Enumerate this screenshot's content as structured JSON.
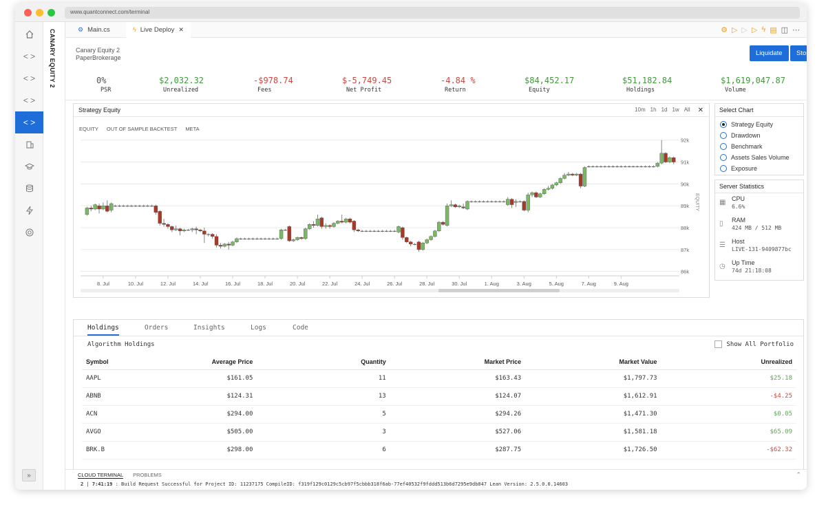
{
  "browser": {
    "url": "www.quantconnect.com/terminal"
  },
  "project": {
    "vertical_title": "CANARY EQUITY 2",
    "name": "Canary Equity 2",
    "brokerage": "PaperBrokerage"
  },
  "tabs": [
    {
      "label": "Main.cs",
      "icon": "csharp-file-icon"
    },
    {
      "label": "Live Deploy",
      "icon": "lightning-icon",
      "close": "✕"
    }
  ],
  "actions": {
    "liquidate": "Liquidate",
    "stop": "Stop"
  },
  "stats": [
    {
      "value": "0%",
      "label": "PSR",
      "color": "#555555"
    },
    {
      "value": "$2,032.32",
      "label": "Unrealized",
      "color": "#3f9a3a"
    },
    {
      "value": "-$978.74",
      "label": "Fees",
      "color": "#d0463e"
    },
    {
      "value": "$-5,749.45",
      "label": "Net Profit",
      "color": "#d0463e"
    },
    {
      "value": "-4.84 %",
      "label": "Return",
      "color": "#d0463e"
    },
    {
      "value": "$84,452.17",
      "label": "Equity",
      "color": "#3f9a3a"
    },
    {
      "value": "$51,182.84",
      "label": "Holdings",
      "color": "#3f9a3a"
    },
    {
      "value": "$1,619,047.87",
      "label": "Volume",
      "color": "#3f9a3a"
    }
  ],
  "chart_panel": {
    "title": "Strategy Equity",
    "ranges": [
      "10m",
      "1h",
      "1d",
      "1w",
      "All"
    ],
    "close": "✕",
    "series_tabs": [
      "EQUITY",
      "OUT OF SAMPLE BACKTEST",
      "META"
    ]
  },
  "chart_data": {
    "type": "candlestick",
    "ylabel": "EQUITY",
    "ylim": [
      85.8,
      92.4
    ],
    "yticks": [
      "86k",
      "87k",
      "88k",
      "89k",
      "90k",
      "91k",
      "92k"
    ],
    "xticks": [
      "8. Jul",
      "10. Jul",
      "12. Jul",
      "14. Jul",
      "16. Jul",
      "18. Jul",
      "20. Jul",
      "22. Jul",
      "24. Jul",
      "26. Jul",
      "28. Jul",
      "30. Jul",
      "1. Aug",
      "3. Aug",
      "5. Aug",
      "7. Aug",
      "9. Aug"
    ],
    "candles": [
      [
        7.0,
        88.6,
        88.9,
        88.55,
        88.95
      ],
      [
        7.25,
        88.9,
        88.85,
        88.75,
        89.0
      ],
      [
        7.5,
        88.85,
        89.05,
        88.8,
        89.1
      ],
      [
        7.75,
        89.0,
        88.85,
        88.65,
        89.1
      ],
      [
        8.0,
        88.85,
        89.0,
        88.8,
        89.15
      ],
      [
        8.25,
        89.0,
        88.75,
        88.7,
        89.25
      ],
      [
        8.5,
        88.8,
        89.1,
        88.7,
        89.15
      ],
      [
        8.75,
        89.0,
        89.0,
        88.95,
        89.05
      ],
      [
        9.0,
        89.0,
        89.0,
        88.95,
        89.05
      ],
      [
        9.25,
        89.0,
        89.0,
        88.95,
        89.05
      ],
      [
        9.5,
        89.0,
        89.0,
        88.95,
        89.05
      ],
      [
        9.75,
        89.0,
        89.0,
        88.95,
        89.05
      ],
      [
        10.0,
        89.0,
        89.0,
        88.95,
        89.05
      ],
      [
        10.25,
        89.0,
        89.0,
        88.95,
        89.05
      ],
      [
        10.5,
        89.0,
        89.0,
        88.95,
        89.05
      ],
      [
        10.75,
        89.0,
        89.0,
        88.95,
        89.05
      ],
      [
        11.0,
        89.0,
        89.0,
        88.95,
        89.05
      ],
      [
        11.25,
        89.0,
        88.7,
        88.6,
        89.05
      ],
      [
        11.5,
        88.75,
        88.2,
        88.1,
        88.8
      ],
      [
        11.75,
        88.2,
        88.15,
        88.05,
        88.4
      ],
      [
        12.0,
        88.15,
        88.05,
        87.95,
        88.2
      ],
      [
        12.25,
        88.05,
        87.9,
        87.8,
        88.1
      ],
      [
        12.5,
        87.9,
        87.95,
        87.85,
        88.1
      ],
      [
        12.75,
        87.95,
        87.85,
        87.65,
        88.0
      ],
      [
        13.0,
        87.85,
        87.9,
        87.8,
        87.95
      ],
      [
        13.25,
        87.9,
        87.9,
        87.85,
        87.95
      ],
      [
        13.5,
        87.9,
        87.95,
        87.8,
        88.0
      ],
      [
        13.75,
        87.95,
        87.9,
        87.7,
        88.05
      ],
      [
        14.0,
        87.9,
        87.85,
        87.8,
        87.95
      ],
      [
        14.25,
        87.85,
        87.7,
        87.3,
        88.0
      ],
      [
        14.5,
        87.7,
        87.7,
        87.6,
        87.75
      ],
      [
        14.75,
        87.7,
        87.6,
        87.5,
        87.75
      ],
      [
        15.0,
        87.6,
        87.2,
        87.1,
        87.7
      ],
      [
        15.25,
        87.2,
        87.15,
        87.05,
        87.3
      ],
      [
        15.5,
        87.15,
        87.25,
        87.1,
        87.3
      ],
      [
        15.75,
        87.25,
        87.2,
        87.0,
        87.35
      ],
      [
        16.0,
        87.2,
        87.35,
        87.15,
        87.4
      ],
      [
        16.25,
        87.35,
        87.5,
        87.3,
        87.55
      ],
      [
        16.5,
        87.5,
        87.5,
        87.45,
        87.55
      ],
      [
        16.75,
        87.5,
        87.5,
        87.45,
        87.55
      ],
      [
        17.0,
        87.5,
        87.5,
        87.45,
        87.55
      ],
      [
        17.25,
        87.5,
        87.5,
        87.45,
        87.55
      ],
      [
        17.5,
        87.5,
        87.5,
        87.45,
        87.55
      ],
      [
        17.75,
        87.5,
        87.5,
        87.45,
        87.55
      ],
      [
        18.0,
        87.5,
        87.5,
        87.45,
        87.55
      ],
      [
        18.25,
        87.5,
        87.5,
        87.45,
        87.55
      ],
      [
        18.5,
        87.5,
        87.5,
        87.45,
        87.55
      ],
      [
        18.75,
        87.5,
        87.5,
        87.45,
        87.55
      ],
      [
        19.0,
        87.5,
        87.9,
        87.45,
        87.95
      ],
      [
        19.25,
        87.9,
        87.9,
        87.85,
        87.95
      ],
      [
        19.5,
        88.05,
        87.4,
        87.35,
        88.1
      ],
      [
        19.75,
        87.4,
        87.45,
        87.35,
        87.5
      ],
      [
        20.0,
        87.45,
        87.55,
        87.4,
        87.6
      ],
      [
        20.25,
        87.55,
        87.5,
        87.45,
        87.6
      ],
      [
        20.5,
        87.5,
        87.95,
        87.45,
        88.0
      ],
      [
        20.75,
        87.95,
        88.15,
        87.9,
        88.2
      ],
      [
        21.0,
        88.15,
        88.1,
        88.0,
        88.3
      ],
      [
        21.25,
        88.1,
        88.4,
        88.05,
        88.6
      ],
      [
        21.5,
        88.45,
        88.05,
        87.95,
        88.5
      ],
      [
        21.75,
        88.05,
        88.1,
        87.95,
        88.2
      ],
      [
        22.0,
        88.1,
        88.05,
        87.95,
        88.15
      ],
      [
        22.25,
        88.05,
        88.2,
        88.0,
        88.25
      ],
      [
        22.5,
        88.2,
        88.3,
        88.15,
        88.35
      ],
      [
        22.75,
        88.3,
        88.25,
        88.2,
        88.6
      ],
      [
        23.0,
        88.25,
        88.4,
        88.2,
        88.45
      ],
      [
        23.25,
        88.4,
        88.25,
        88.2,
        88.45
      ],
      [
        23.5,
        88.3,
        87.9,
        87.8,
        88.35
      ],
      [
        23.75,
        87.9,
        87.85,
        87.8,
        87.95
      ],
      [
        24.0,
        87.85,
        87.85,
        87.8,
        87.9
      ],
      [
        24.25,
        87.85,
        87.85,
        87.8,
        87.9
      ],
      [
        24.5,
        87.85,
        87.85,
        87.8,
        87.9
      ],
      [
        24.75,
        87.85,
        87.85,
        87.8,
        87.9
      ],
      [
        25.0,
        87.85,
        87.85,
        87.8,
        87.9
      ],
      [
        25.25,
        87.85,
        87.85,
        87.8,
        87.9
      ],
      [
        25.5,
        87.85,
        87.85,
        87.8,
        87.9
      ],
      [
        25.75,
        87.85,
        87.85,
        87.8,
        87.9
      ],
      [
        26.0,
        87.85,
        87.85,
        87.8,
        87.9
      ],
      [
        26.25,
        87.8,
        88.05,
        87.75,
        88.1
      ],
      [
        26.5,
        88.0,
        87.55,
        87.45,
        88.05
      ],
      [
        26.75,
        87.55,
        87.35,
        87.3,
        87.6
      ],
      [
        27.0,
        87.35,
        87.25,
        87.15,
        87.4
      ],
      [
        27.25,
        87.25,
        87.25,
        87.2,
        87.3
      ],
      [
        27.5,
        87.35,
        87.0,
        86.9,
        87.4
      ],
      [
        27.75,
        87.0,
        87.3,
        86.95,
        87.35
      ],
      [
        28.0,
        87.3,
        87.45,
        87.25,
        87.5
      ],
      [
        28.25,
        87.45,
        87.6,
        87.4,
        87.65
      ],
      [
        28.5,
        87.6,
        87.85,
        87.55,
        87.9
      ],
      [
        28.75,
        87.85,
        88.25,
        87.8,
        88.3
      ],
      [
        29.0,
        88.25,
        88.15,
        88.1,
        88.3
      ],
      [
        29.25,
        88.1,
        89.0,
        88.05,
        89.1
      ],
      [
        29.5,
        89.0,
        89.05,
        88.95,
        89.25
      ],
      [
        29.75,
        89.05,
        88.95,
        88.9,
        89.1
      ],
      [
        30.0,
        88.95,
        89.0,
        88.9,
        89.05
      ],
      [
        30.25,
        88.95,
        88.9,
        88.85,
        89.1
      ],
      [
        30.5,
        88.85,
        89.2,
        88.8,
        89.25
      ],
      [
        30.75,
        89.2,
        89.2,
        89.15,
        89.25
      ],
      [
        31.0,
        89.2,
        89.2,
        89.15,
        89.25
      ],
      [
        31.25,
        89.2,
        89.2,
        89.15,
        89.25
      ],
      [
        31.5,
        89.2,
        89.2,
        89.15,
        89.25
      ],
      [
        31.75,
        89.2,
        89.2,
        89.15,
        89.25
      ],
      [
        32.0,
        89.2,
        89.2,
        89.15,
        89.25
      ],
      [
        32.25,
        89.2,
        89.2,
        89.15,
        89.25
      ],
      [
        32.5,
        89.2,
        89.2,
        89.15,
        89.25
      ],
      [
        32.75,
        89.2,
        89.2,
        89.15,
        89.25
      ],
      [
        33.0,
        89.05,
        89.3,
        89.0,
        89.4
      ],
      [
        33.25,
        89.3,
        89.05,
        88.9,
        89.35
      ],
      [
        33.5,
        89.15,
        89.2,
        88.95,
        89.3
      ],
      [
        33.75,
        89.2,
        89.2,
        89.15,
        89.25
      ],
      [
        34.0,
        89.2,
        88.8,
        88.75,
        89.25
      ],
      [
        34.25,
        88.8,
        89.5,
        88.7,
        89.6
      ],
      [
        34.5,
        89.5,
        89.6,
        89.4,
        89.65
      ],
      [
        34.75,
        89.6,
        89.4,
        89.35,
        89.65
      ],
      [
        35.0,
        89.4,
        89.55,
        89.35,
        89.6
      ],
      [
        35.25,
        89.55,
        89.75,
        89.5,
        89.8
      ],
      [
        35.5,
        89.75,
        89.8,
        89.7,
        89.9
      ],
      [
        35.75,
        89.8,
        89.95,
        89.75,
        90.0
      ],
      [
        36.0,
        89.95,
        90.05,
        89.9,
        90.1
      ],
      [
        36.25,
        90.05,
        90.25,
        90.0,
        90.3
      ],
      [
        36.5,
        90.25,
        90.4,
        90.2,
        90.5
      ],
      [
        36.75,
        90.4,
        90.45,
        90.35,
        90.55
      ],
      [
        37.0,
        90.45,
        90.4,
        90.35,
        90.5
      ],
      [
        37.25,
        90.4,
        90.45,
        90.35,
        90.5
      ],
      [
        37.5,
        90.45,
        89.9,
        89.8,
        90.5
      ],
      [
        37.75,
        89.9,
        90.75,
        89.85,
        90.8
      ],
      [
        38.0,
        90.8,
        90.8,
        90.75,
        90.85
      ],
      [
        38.25,
        90.8,
        90.8,
        90.75,
        90.85
      ],
      [
        38.5,
        90.8,
        90.8,
        90.75,
        90.85
      ],
      [
        38.75,
        90.8,
        90.8,
        90.75,
        90.85
      ],
      [
        39.0,
        90.8,
        90.8,
        90.75,
        90.85
      ],
      [
        39.25,
        90.8,
        90.8,
        90.75,
        90.85
      ],
      [
        39.5,
        90.8,
        90.8,
        90.75,
        90.85
      ],
      [
        39.75,
        90.8,
        90.8,
        90.75,
        90.85
      ],
      [
        40.0,
        90.8,
        90.8,
        90.75,
        90.85
      ],
      [
        40.25,
        90.8,
        90.8,
        90.75,
        90.85
      ],
      [
        40.5,
        90.8,
        90.8,
        90.75,
        90.85
      ],
      [
        40.75,
        90.8,
        90.8,
        90.75,
        90.85
      ],
      [
        41.0,
        90.8,
        90.8,
        90.75,
        90.85
      ],
      [
        41.25,
        90.8,
        90.8,
        90.75,
        90.85
      ],
      [
        41.5,
        90.8,
        90.8,
        90.75,
        90.85
      ],
      [
        41.75,
        90.8,
        90.8,
        90.75,
        90.85
      ],
      [
        42.0,
        90.8,
        90.8,
        90.75,
        90.85
      ],
      [
        42.25,
        90.8,
        90.95,
        90.75,
        91.0
      ],
      [
        42.5,
        90.95,
        91.4,
        90.9,
        92.0
      ],
      [
        42.75,
        91.4,
        91.0,
        90.95,
        91.45
      ],
      [
        43.0,
        91.0,
        91.2,
        90.95,
        91.25
      ],
      [
        43.25,
        91.2,
        91.0,
        90.9,
        91.25
      ]
    ],
    "grid": true
  },
  "select_chart": {
    "title": "Select Chart",
    "options": [
      {
        "label": "Strategy Equity",
        "selected": true
      },
      {
        "label": "Drawdown",
        "selected": false
      },
      {
        "label": "Benchmark",
        "selected": false
      },
      {
        "label": "Assets Sales Volume",
        "selected": false
      },
      {
        "label": "Exposure",
        "selected": false
      }
    ]
  },
  "server_stats": {
    "title": "Server Statistics",
    "items": [
      {
        "label": "CPU",
        "value": "6.6%",
        "icon": "cpu-icon"
      },
      {
        "label": "RAM",
        "value": "424 MB / 512 MB",
        "icon": "memory-icon"
      },
      {
        "label": "Host",
        "value": "LIVE-131-9409877bc",
        "icon": "server-icon"
      },
      {
        "label": "Up Time",
        "value": "74d 21:18:08",
        "icon": "clock-icon"
      }
    ]
  },
  "holdings": {
    "tabs": [
      "Holdings",
      "Orders",
      "Insights",
      "Logs",
      "Code"
    ],
    "title": "Algorithm Holdings",
    "show_all": "Show All Portfolio",
    "columns": [
      "Symbol",
      "Average Price",
      "Quantity",
      "Market Price",
      "Market Value",
      "Unrealized"
    ],
    "rows": [
      {
        "symbol": "AAPL",
        "avg": "$161.05",
        "qty": "11",
        "mkt": "$163.43",
        "val": "$1,797.73",
        "unr": "$25.18",
        "sign": "pos"
      },
      {
        "symbol": "ABNB",
        "avg": "$124.31",
        "qty": "13",
        "mkt": "$124.07",
        "val": "$1,612.91",
        "unr": "-$4.25",
        "sign": "neg"
      },
      {
        "symbol": "ACN",
        "avg": "$294.00",
        "qty": "5",
        "mkt": "$294.26",
        "val": "$1,471.30",
        "unr": "$0.05",
        "sign": "pos"
      },
      {
        "symbol": "AVGO",
        "avg": "$505.00",
        "qty": "3",
        "mkt": "$527.06",
        "val": "$1,581.18",
        "unr": "$65.09",
        "sign": "pos"
      },
      {
        "symbol": "BRK.B",
        "avg": "$298.00",
        "qty": "6",
        "mkt": "$287.75",
        "val": "$1,726.50",
        "unr": "-$62.32",
        "sign": "neg"
      }
    ]
  },
  "terminal": {
    "tabs": [
      "CLOUD TERMINAL",
      "PROBLEMS"
    ],
    "line_no": "2",
    "time": "7:41:19",
    "message": ": Build Request Successful for Project ID: 11237175 CompileID: f319f129c0129c5cb97f5cbbb318f6ab-77ef40532f9fddd513b6d7295e9db847 Lean Version: 2.5.0.0.14603"
  },
  "sidebar": {
    "items": [
      "home-icon",
      "code-icon",
      "code-icon",
      "code-icon",
      "code-icon",
      "building-icon",
      "graduation-cap-icon",
      "database-icon",
      "lightning-icon",
      "lifebuoy-icon"
    ],
    "expand": "»"
  }
}
